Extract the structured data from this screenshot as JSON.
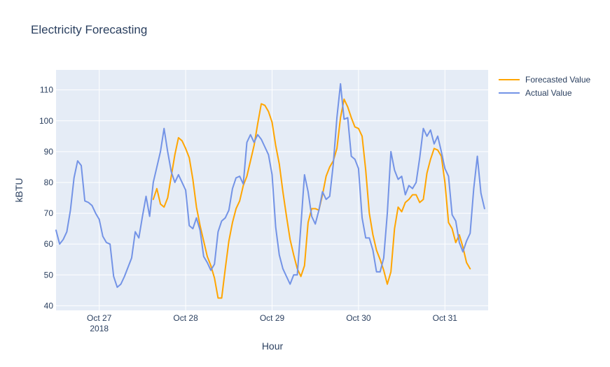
{
  "chart_data": {
    "type": "line",
    "title": "Electricity Forecasting",
    "xlabel": "Hour",
    "ylabel": "kBTU",
    "x_axis": {
      "type": "date",
      "range": [
        "2018-10-26T12:00",
        "2018-10-31T12:00"
      ],
      "tick_labels": [
        {
          "at": "2018-10-27T00:00",
          "label": "Oct 27",
          "sublabel": "2018"
        },
        {
          "at": "2018-10-28T00:00",
          "label": "Oct 28",
          "sublabel": ""
        },
        {
          "at": "2018-10-29T00:00",
          "label": "Oct 29",
          "sublabel": ""
        },
        {
          "at": "2018-10-30T00:00",
          "label": "Oct 30",
          "sublabel": ""
        },
        {
          "at": "2018-10-31T00:00",
          "label": "Oct 31",
          "sublabel": ""
        }
      ]
    },
    "ylim": [
      38.5,
      116.5
    ],
    "y_ticks": [
      40,
      50,
      60,
      70,
      80,
      90,
      100,
      110
    ],
    "grid": true,
    "legend_position": "top-right",
    "series": [
      {
        "name": "Forecasted Value",
        "color": "#FFA500",
        "points": [
          [
            "2018-10-27T15:00",
            74.5
          ],
          [
            "2018-10-27T16:00",
            78.0
          ],
          [
            "2018-10-27T17:00",
            73.0
          ],
          [
            "2018-10-27T18:00",
            72.0
          ],
          [
            "2018-10-27T19:00",
            75.0
          ],
          [
            "2018-10-27T20:00",
            82.0
          ],
          [
            "2018-10-27T21:00",
            89.0
          ],
          [
            "2018-10-27T22:00",
            94.5
          ],
          [
            "2018-10-27T23:00",
            93.5
          ],
          [
            "2018-10-28T00:00",
            91.0
          ],
          [
            "2018-10-28T01:00",
            88.0
          ],
          [
            "2018-10-28T02:00",
            81.0
          ],
          [
            "2018-10-28T03:00",
            72.0
          ],
          [
            "2018-10-28T04:00",
            66.0
          ],
          [
            "2018-10-28T05:00",
            61.0
          ],
          [
            "2018-10-28T06:00",
            56.0
          ],
          [
            "2018-10-28T07:00",
            53.0
          ],
          [
            "2018-10-28T08:00",
            49.0
          ],
          [
            "2018-10-28T09:00",
            42.5
          ],
          [
            "2018-10-28T10:00",
            42.5
          ],
          [
            "2018-10-28T11:00",
            52.0
          ],
          [
            "2018-10-28T12:00",
            61.0
          ],
          [
            "2018-10-28T13:00",
            67.0
          ],
          [
            "2018-10-28T14:00",
            71.5
          ],
          [
            "2018-10-28T15:00",
            74.0
          ],
          [
            "2018-10-28T16:00",
            79.0
          ],
          [
            "2018-10-28T17:00",
            82.0
          ],
          [
            "2018-10-28T18:00",
            87.0
          ],
          [
            "2018-10-28T19:00",
            92.0
          ],
          [
            "2018-10-28T20:00",
            99.0
          ],
          [
            "2018-10-28T21:00",
            105.5
          ],
          [
            "2018-10-28T22:00",
            105.0
          ],
          [
            "2018-10-28T23:00",
            103.0
          ],
          [
            "2018-10-29T00:00",
            99.5
          ],
          [
            "2018-10-29T01:00",
            92.0
          ],
          [
            "2018-10-29T02:00",
            86.0
          ],
          [
            "2018-10-29T03:00",
            77.0
          ],
          [
            "2018-10-29T04:00",
            69.0
          ],
          [
            "2018-10-29T05:00",
            61.5
          ],
          [
            "2018-10-29T06:00",
            56.5
          ],
          [
            "2018-10-29T07:00",
            52.0
          ],
          [
            "2018-10-29T08:00",
            49.5
          ],
          [
            "2018-10-29T09:00",
            53.0
          ],
          [
            "2018-10-29T10:00",
            67.0
          ],
          [
            "2018-10-29T11:00",
            71.5
          ],
          [
            "2018-10-29T12:00",
            71.5
          ],
          [
            "2018-10-29T13:00",
            71.0
          ],
          [
            "2018-10-29T14:00",
            76.0
          ],
          [
            "2018-10-29T15:00",
            82.0
          ],
          [
            "2018-10-29T16:00",
            85.0
          ],
          [
            "2018-10-29T17:00",
            87.0
          ],
          [
            "2018-10-29T18:00",
            91.0
          ],
          [
            "2018-10-29T19:00",
            101.0
          ],
          [
            "2018-10-29T20:00",
            107.0
          ],
          [
            "2018-10-29T21:00",
            104.5
          ],
          [
            "2018-10-29T22:00",
            101.0
          ],
          [
            "2018-10-29T23:00",
            98.0
          ],
          [
            "2018-10-30T00:00",
            97.5
          ],
          [
            "2018-10-30T01:00",
            95.0
          ],
          [
            "2018-10-30T02:00",
            84.0
          ],
          [
            "2018-10-30T03:00",
            70.0
          ],
          [
            "2018-10-30T04:00",
            63.0
          ],
          [
            "2018-10-30T05:00",
            58.0
          ],
          [
            "2018-10-30T06:00",
            55.0
          ],
          [
            "2018-10-30T07:00",
            51.5
          ],
          [
            "2018-10-30T08:00",
            47.0
          ],
          [
            "2018-10-30T09:00",
            51.0
          ],
          [
            "2018-10-30T10:00",
            65.0
          ],
          [
            "2018-10-30T11:00",
            72.0
          ],
          [
            "2018-10-30T12:00",
            70.5
          ],
          [
            "2018-10-30T13:00",
            73.5
          ],
          [
            "2018-10-30T14:00",
            74.5
          ],
          [
            "2018-10-30T15:00",
            76.0
          ],
          [
            "2018-10-30T16:00",
            76.0
          ],
          [
            "2018-10-30T17:00",
            73.5
          ],
          [
            "2018-10-30T18:00",
            74.5
          ],
          [
            "2018-10-30T19:00",
            83.0
          ],
          [
            "2018-10-30T20:00",
            87.5
          ],
          [
            "2018-10-30T21:00",
            91.0
          ],
          [
            "2018-10-30T22:00",
            90.5
          ],
          [
            "2018-10-30T23:00",
            88.5
          ],
          [
            "2018-10-31T00:00",
            80.0
          ],
          [
            "2018-10-31T01:00",
            67.0
          ],
          [
            "2018-10-31T02:00",
            65.0
          ],
          [
            "2018-10-31T03:00",
            60.5
          ],
          [
            "2018-10-31T04:00",
            63.0
          ],
          [
            "2018-10-31T05:00",
            59.0
          ],
          [
            "2018-10-31T06:00",
            54.0
          ],
          [
            "2018-10-31T07:00",
            52.0
          ]
        ]
      },
      {
        "name": "Actual Value",
        "color": "#7393E6",
        "points": [
          [
            "2018-10-26T12:00",
            64.5
          ],
          [
            "2018-10-26T13:00",
            60.0
          ],
          [
            "2018-10-26T14:00",
            61.5
          ],
          [
            "2018-10-26T15:00",
            64.0
          ],
          [
            "2018-10-26T16:00",
            71.0
          ],
          [
            "2018-10-26T17:00",
            81.5
          ],
          [
            "2018-10-26T18:00",
            87.0
          ],
          [
            "2018-10-26T19:00",
            85.5
          ],
          [
            "2018-10-26T20:00",
            74.0
          ],
          [
            "2018-10-26T21:00",
            73.5
          ],
          [
            "2018-10-26T22:00",
            72.5
          ],
          [
            "2018-10-26T23:00",
            70.0
          ],
          [
            "2018-10-27T00:00",
            68.0
          ],
          [
            "2018-10-27T01:00",
            62.5
          ],
          [
            "2018-10-27T02:00",
            60.5
          ],
          [
            "2018-10-27T03:00",
            60.0
          ],
          [
            "2018-10-27T04:00",
            49.5
          ],
          [
            "2018-10-27T05:00",
            46.0
          ],
          [
            "2018-10-27T06:00",
            47.0
          ],
          [
            "2018-10-27T07:00",
            49.5
          ],
          [
            "2018-10-27T08:00",
            52.5
          ],
          [
            "2018-10-27T09:00",
            55.5
          ],
          [
            "2018-10-27T10:00",
            64.0
          ],
          [
            "2018-10-27T11:00",
            62.0
          ],
          [
            "2018-10-27T12:00",
            69.0
          ],
          [
            "2018-10-27T13:00",
            75.5
          ],
          [
            "2018-10-27T14:00",
            69.0
          ],
          [
            "2018-10-27T15:00",
            80.0
          ],
          [
            "2018-10-27T16:00",
            85.0
          ],
          [
            "2018-10-27T17:00",
            90.0
          ],
          [
            "2018-10-27T18:00",
            97.5
          ],
          [
            "2018-10-27T19:00",
            90.0
          ],
          [
            "2018-10-27T20:00",
            83.5
          ],
          [
            "2018-10-27T21:00",
            80.0
          ],
          [
            "2018-10-27T22:00",
            82.5
          ],
          [
            "2018-10-27T23:00",
            80.0
          ],
          [
            "2018-10-28T00:00",
            77.5
          ],
          [
            "2018-10-28T01:00",
            66.0
          ],
          [
            "2018-10-28T02:00",
            65.0
          ],
          [
            "2018-10-28T03:00",
            68.5
          ],
          [
            "2018-10-28T04:00",
            64.5
          ],
          [
            "2018-10-28T05:00",
            56.0
          ],
          [
            "2018-10-28T06:00",
            54.0
          ],
          [
            "2018-10-28T07:00",
            51.5
          ],
          [
            "2018-10-28T08:00",
            53.5
          ],
          [
            "2018-10-28T09:00",
            64.0
          ],
          [
            "2018-10-28T10:00",
            67.5
          ],
          [
            "2018-10-28T11:00",
            68.5
          ],
          [
            "2018-10-28T12:00",
            71.0
          ],
          [
            "2018-10-28T13:00",
            78.0
          ],
          [
            "2018-10-28T14:00",
            81.5
          ],
          [
            "2018-10-28T15:00",
            82.0
          ],
          [
            "2018-10-28T16:00",
            79.5
          ],
          [
            "2018-10-28T17:00",
            93.0
          ],
          [
            "2018-10-28T18:00",
            95.5
          ],
          [
            "2018-10-28T19:00",
            93.0
          ],
          [
            "2018-10-28T20:00",
            95.5
          ],
          [
            "2018-10-28T21:00",
            94.0
          ],
          [
            "2018-10-28T22:00",
            91.5
          ],
          [
            "2018-10-28T23:00",
            89.0
          ],
          [
            "2018-10-29T00:00",
            82.5
          ],
          [
            "2018-10-29T01:00",
            65.5
          ],
          [
            "2018-10-29T02:00",
            56.5
          ],
          [
            "2018-10-29T03:00",
            52.0
          ],
          [
            "2018-10-29T04:00",
            49.5
          ],
          [
            "2018-10-29T05:00",
            47.0
          ],
          [
            "2018-10-29T06:00",
            50.0
          ],
          [
            "2018-10-29T07:00",
            50.0
          ],
          [
            "2018-10-29T08:00",
            66.0
          ],
          [
            "2018-10-29T09:00",
            82.5
          ],
          [
            "2018-10-29T10:00",
            77.0
          ],
          [
            "2018-10-29T11:00",
            69.0
          ],
          [
            "2018-10-29T12:00",
            66.5
          ],
          [
            "2018-10-29T13:00",
            71.0
          ],
          [
            "2018-10-29T14:00",
            77.0
          ],
          [
            "2018-10-29T15:00",
            74.5
          ],
          [
            "2018-10-29T16:00",
            75.5
          ],
          [
            "2018-10-29T17:00",
            86.0
          ],
          [
            "2018-10-29T18:00",
            101.0
          ],
          [
            "2018-10-29T19:00",
            112.0
          ],
          [
            "2018-10-29T20:00",
            100.5
          ],
          [
            "2018-10-29T21:00",
            101.0
          ],
          [
            "2018-10-29T22:00",
            88.5
          ],
          [
            "2018-10-29T23:00",
            87.5
          ],
          [
            "2018-10-30T00:00",
            84.5
          ],
          [
            "2018-10-30T01:00",
            68.5
          ],
          [
            "2018-10-30T02:00",
            62.0
          ],
          [
            "2018-10-30T03:00",
            62.0
          ],
          [
            "2018-10-30T04:00",
            58.0
          ],
          [
            "2018-10-30T05:00",
            51.0
          ],
          [
            "2018-10-30T06:00",
            51.0
          ],
          [
            "2018-10-30T07:00",
            55.5
          ],
          [
            "2018-10-30T08:00",
            70.0
          ],
          [
            "2018-10-30T09:00",
            90.0
          ],
          [
            "2018-10-30T10:00",
            84.0
          ],
          [
            "2018-10-30T11:00",
            81.0
          ],
          [
            "2018-10-30T12:00",
            82.0
          ],
          [
            "2018-10-30T13:00",
            76.0
          ],
          [
            "2018-10-30T14:00",
            79.0
          ],
          [
            "2018-10-30T15:00",
            78.0
          ],
          [
            "2018-10-30T16:00",
            80.0
          ],
          [
            "2018-10-30T17:00",
            88.0
          ],
          [
            "2018-10-30T18:00",
            97.5
          ],
          [
            "2018-10-30T19:00",
            95.0
          ],
          [
            "2018-10-30T20:00",
            97.0
          ],
          [
            "2018-10-30T21:00",
            92.5
          ],
          [
            "2018-10-30T22:00",
            95.0
          ],
          [
            "2018-10-30T23:00",
            90.0
          ],
          [
            "2018-10-31T00:00",
            84.5
          ],
          [
            "2018-10-31T01:00",
            82.0
          ],
          [
            "2018-10-31T02:00",
            69.5
          ],
          [
            "2018-10-31T03:00",
            67.5
          ],
          [
            "2018-10-31T04:00",
            60.5
          ],
          [
            "2018-10-31T05:00",
            57.5
          ],
          [
            "2018-10-31T06:00",
            61.0
          ],
          [
            "2018-10-31T07:00",
            63.5
          ],
          [
            "2018-10-31T08:00",
            78.0
          ],
          [
            "2018-10-31T09:00",
            88.5
          ],
          [
            "2018-10-31T10:00",
            76.5
          ],
          [
            "2018-10-31T11:00",
            71.5
          ]
        ]
      }
    ]
  }
}
